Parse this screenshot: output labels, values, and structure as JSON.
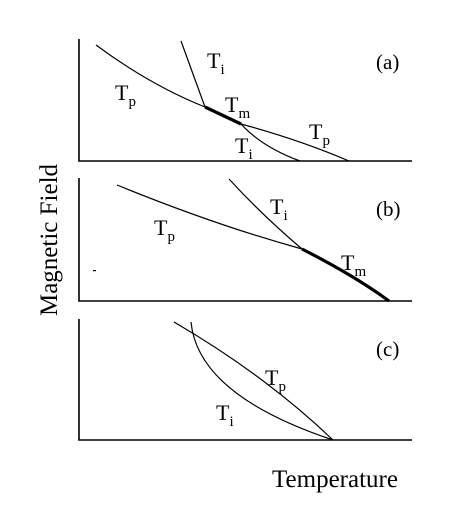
{
  "figure": {
    "axes": {
      "x_title": "Temperature",
      "y_title": "Magnetic Field"
    },
    "panels": [
      {
        "id": "a",
        "panel_label": "(a)",
        "curves": [
          {
            "name": "Tp",
            "base": "T",
            "sub": "p",
            "style": "thin"
          },
          {
            "name": "Ti_upper",
            "base": "T",
            "sub": "i",
            "style": "thin"
          },
          {
            "name": "Tm",
            "base": "T",
            "sub": "m",
            "style": "bold"
          },
          {
            "name": "Ti_lower",
            "base": "T",
            "sub": "i",
            "style": "thin"
          },
          {
            "name": "Tp_right",
            "base": "T",
            "sub": "p",
            "style": "thin"
          }
        ]
      },
      {
        "id": "b",
        "panel_label": "(b)",
        "curves": [
          {
            "name": "Tp",
            "base": "T",
            "sub": "p",
            "style": "thin"
          },
          {
            "name": "Ti",
            "base": "T",
            "sub": "i",
            "style": "thin"
          },
          {
            "name": "Tm",
            "base": "T",
            "sub": "m",
            "style": "bold"
          }
        ]
      },
      {
        "id": "c",
        "panel_label": "(c)",
        "curves": [
          {
            "name": "Tp",
            "base": "T",
            "sub": "p",
            "style": "thin"
          },
          {
            "name": "Ti",
            "base": "T",
            "sub": "i",
            "style": "thin"
          }
        ]
      }
    ]
  }
}
